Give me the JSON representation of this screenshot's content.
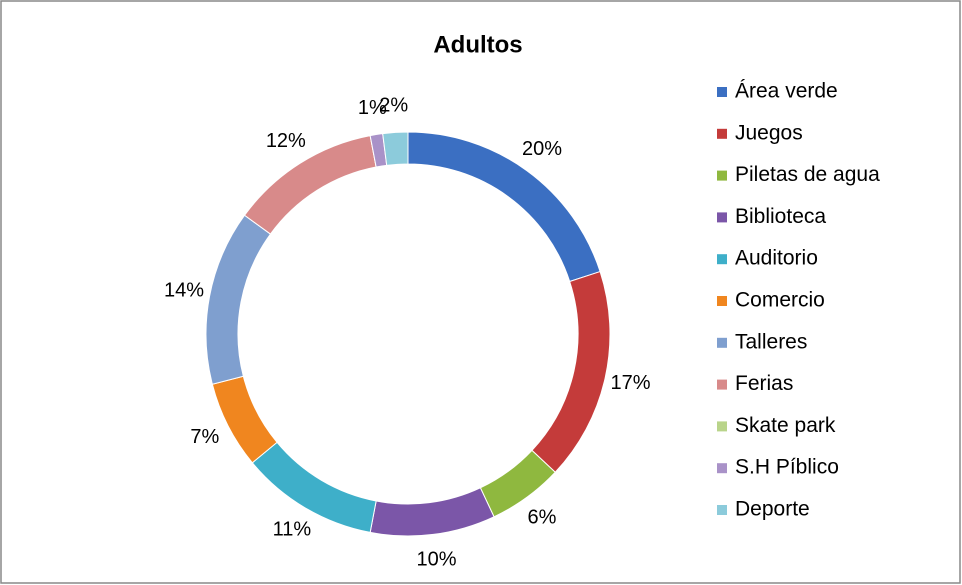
{
  "chart_data": {
    "type": "donut",
    "title": "Adultos",
    "categories": [
      "Área verde",
      "Juegos",
      "Piletas de agua",
      "Biblioteca",
      "Auditorio",
      "Comercio",
      "Talleres",
      "Ferias",
      "Skate park",
      "S.H  Píblico",
      "Deporte"
    ],
    "values": [
      20,
      17,
      6,
      10,
      11,
      7,
      14,
      12,
      0,
      1,
      2
    ],
    "value_labels": [
      "20%",
      "17%",
      "6%",
      "10%",
      "11%",
      "7%",
      "14%",
      "12%",
      null,
      "1%",
      "2%"
    ],
    "colors": [
      "#3b6fc2",
      "#c43b3a",
      "#8fb83f",
      "#7b56a8",
      "#3eafc9",
      "#f0861f",
      "#7f9fcf",
      "#d88a8a",
      "#b9d48a",
      "#a992c8",
      "#8ccbdb"
    ],
    "legend": "right"
  }
}
